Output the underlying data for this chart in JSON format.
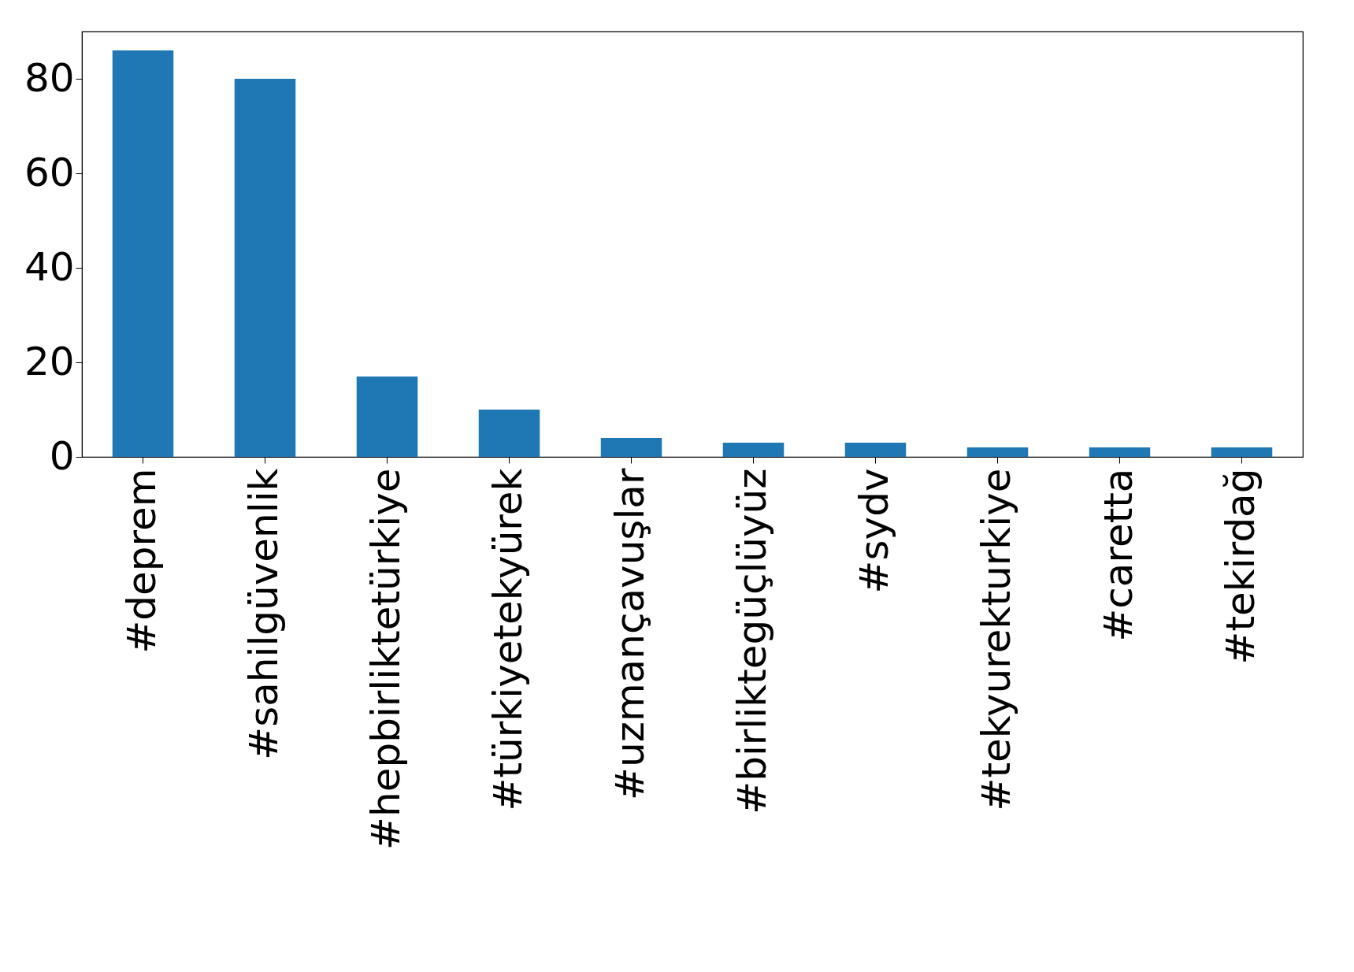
{
  "chart_data": {
    "type": "bar",
    "categories": [
      "#deprem",
      "#sahilgüvenlik",
      "#hepbirliktetürkiye",
      "#türkiyetekyürek",
      "#uzmançavuşlar",
      "#birliktegüçlüyüz",
      "#sydv",
      "#tekyurekturkiye",
      "#caretta",
      "#tekirdağ"
    ],
    "values": [
      86,
      80,
      17,
      10,
      4,
      3,
      3,
      2,
      2,
      2
    ],
    "color": "#1f77b4",
    "ylim": [
      0,
      90
    ],
    "yticks": [
      0,
      20,
      40,
      60,
      80
    ],
    "grid": false
  }
}
